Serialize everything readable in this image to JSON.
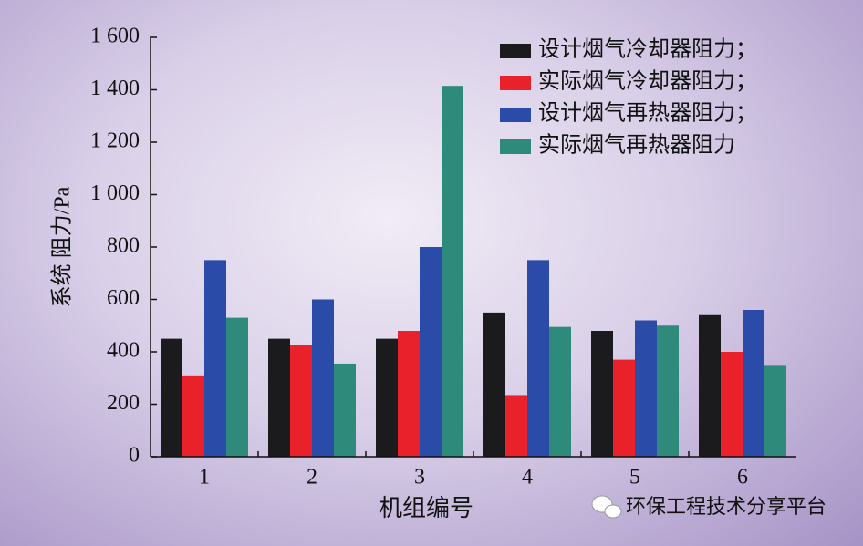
{
  "chart_data": {
    "type": "bar",
    "x_label": "机组编号",
    "y_label": "系统 阻力/Pa",
    "categories": [
      "1",
      "2",
      "3",
      "4",
      "5",
      "6"
    ],
    "series": [
      {
        "name": "设计烟气冷却器阻力；",
        "color": "#1b1b1d",
        "values": [
          450,
          450,
          450,
          550,
          480,
          540
        ]
      },
      {
        "name": "实际烟气冷却器阻力；",
        "color": "#e8212b",
        "values": [
          310,
          425,
          480,
          235,
          370,
          400
        ]
      },
      {
        "name": "设计烟气再热器阻力；",
        "color": "#2b4ba8",
        "values": [
          750,
          600,
          800,
          750,
          520,
          560
        ]
      },
      {
        "name": "实际烟气再热器阻力",
        "color": "#2e8a7b",
        "values": [
          530,
          355,
          1415,
          495,
          500,
          350
        ]
      }
    ],
    "ylim": [
      0,
      1600
    ],
    "yticks": [
      0,
      200,
      400,
      600,
      800,
      {
        "value": 1000,
        "label": "1 000"
      },
      {
        "value": 1200,
        "label": "1 200"
      },
      {
        "value": 1400,
        "label": "1 400"
      },
      {
        "value": 1600,
        "label": "1 600"
      }
    ],
    "legend": "top-right",
    "watermark": "环保工程技术分享平台"
  }
}
